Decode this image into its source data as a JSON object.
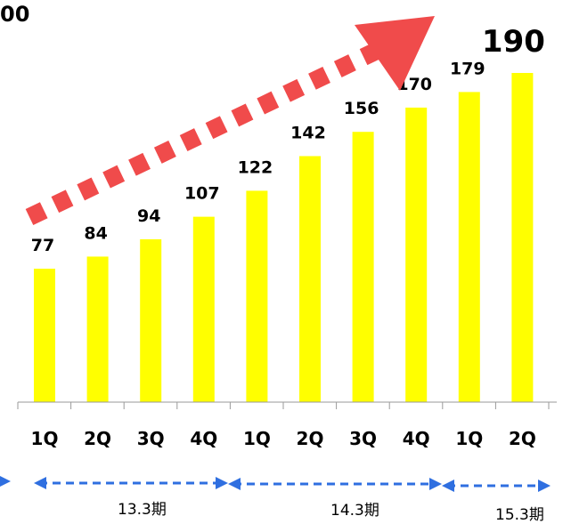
{
  "cut_label": "00",
  "chart_data": {
    "type": "bar",
    "categories": [
      "1Q",
      "2Q",
      "3Q",
      "4Q",
      "1Q",
      "2Q",
      "3Q",
      "4Q",
      "1Q",
      "2Q"
    ],
    "values": [
      77,
      84,
      94,
      107,
      122,
      142,
      156,
      170,
      179,
      190
    ],
    "labels": [
      "77",
      "84",
      "94",
      "107",
      "122",
      "142",
      "156",
      "170",
      "179",
      "190"
    ],
    "highlight_index": 9,
    "bar_color": "#FFFF00",
    "trend_arrow_color": "#F04B4B",
    "period_arrow_color": "#2F6FE0",
    "periods": [
      "13.3期",
      "14.3期",
      "15.3期"
    ],
    "title": "",
    "xlabel": "",
    "ylabel": ""
  }
}
